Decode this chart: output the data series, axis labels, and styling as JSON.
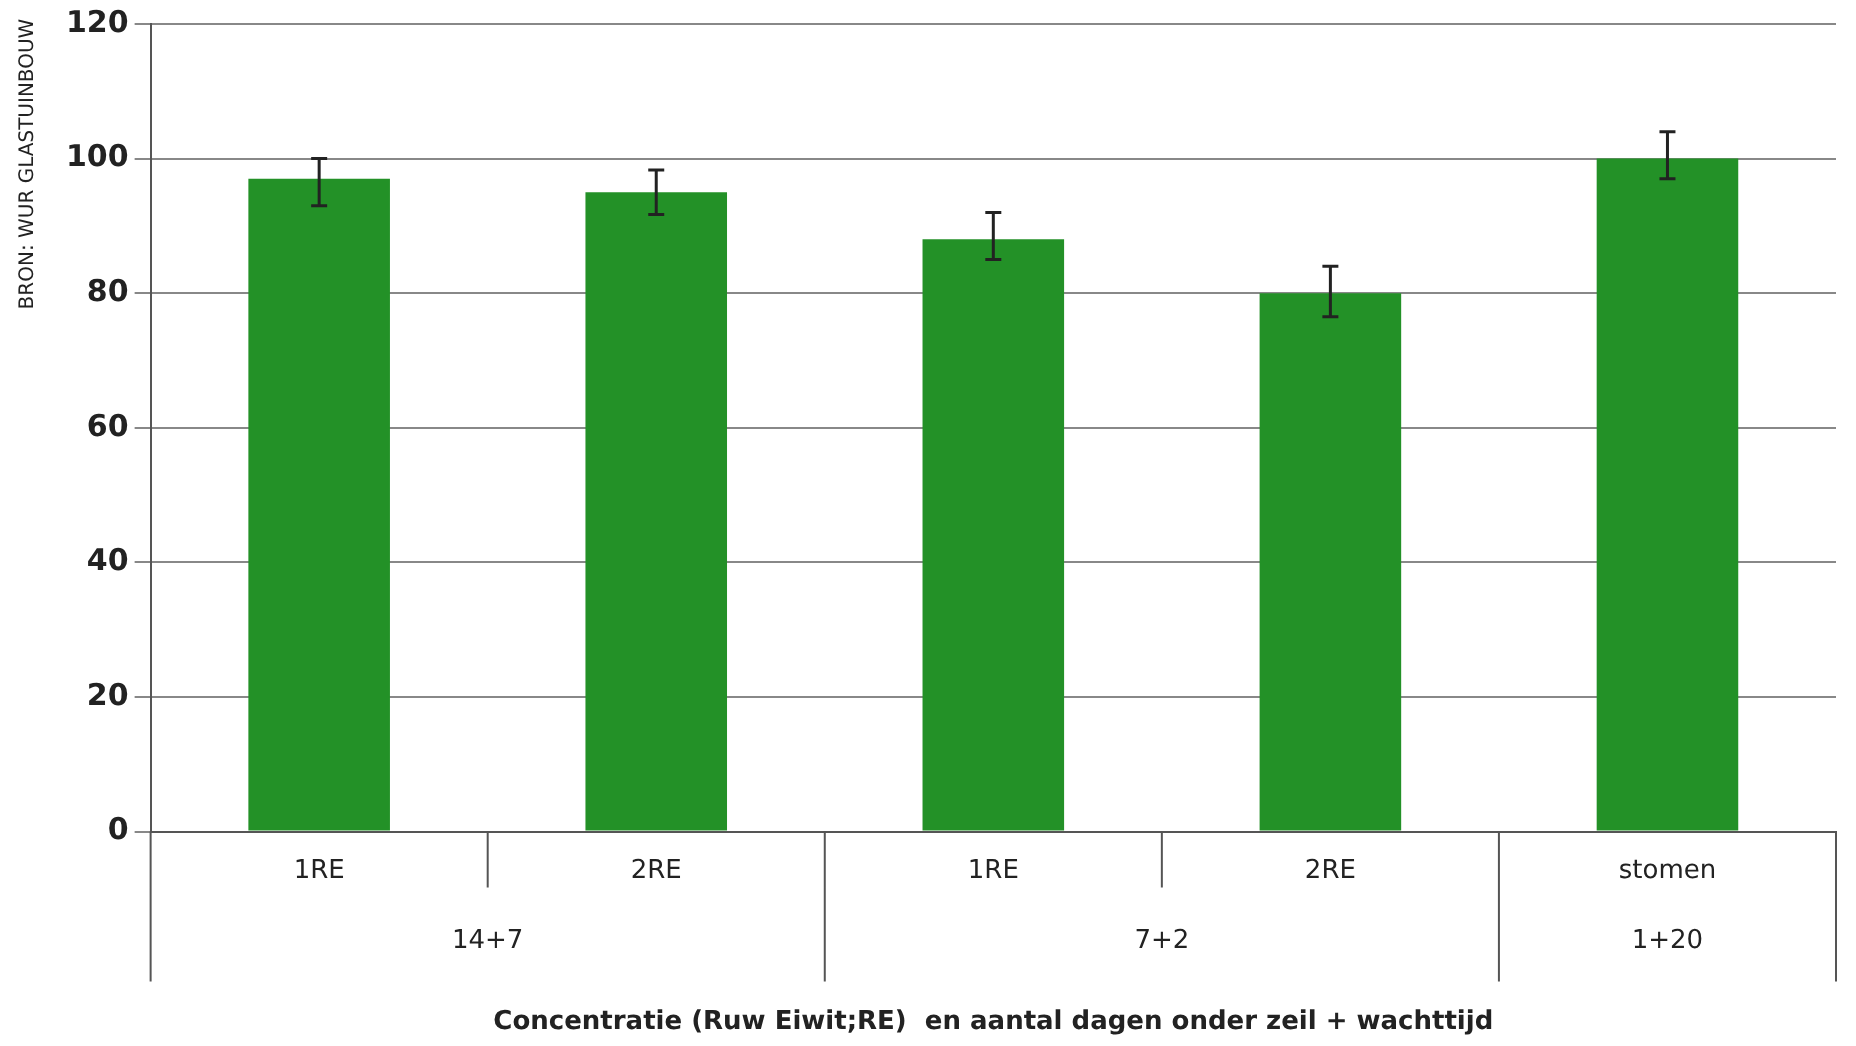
{
  "chart_data": {
    "type": "bar",
    "xlabel": "Concentratie (Ruw Eiwit;RE)  en aantal dagen onder zeil + wachttijd",
    "categories": [
      "1RE",
      "2RE",
      "1RE",
      "2RE",
      "stomen"
    ],
    "values": [
      97,
      95,
      88,
      80,
      100
    ],
    "errors": [
      [
        93,
        100
      ],
      3.3,
      [
        85,
        92
      ],
      [
        76.5,
        84
      ],
      [
        97,
        104
      ]
    ],
    "color": "#239127",
    "ylim": [
      0,
      120
    ],
    "yticks": [
      0,
      20,
      40,
      60,
      80,
      100,
      120
    ],
    "grid": "y",
    "legend": false,
    "annotations": [
      "BRON: WUR GLASTUINBOUW",
      "14+7",
      "7+2",
      "1+20"
    ]
  }
}
